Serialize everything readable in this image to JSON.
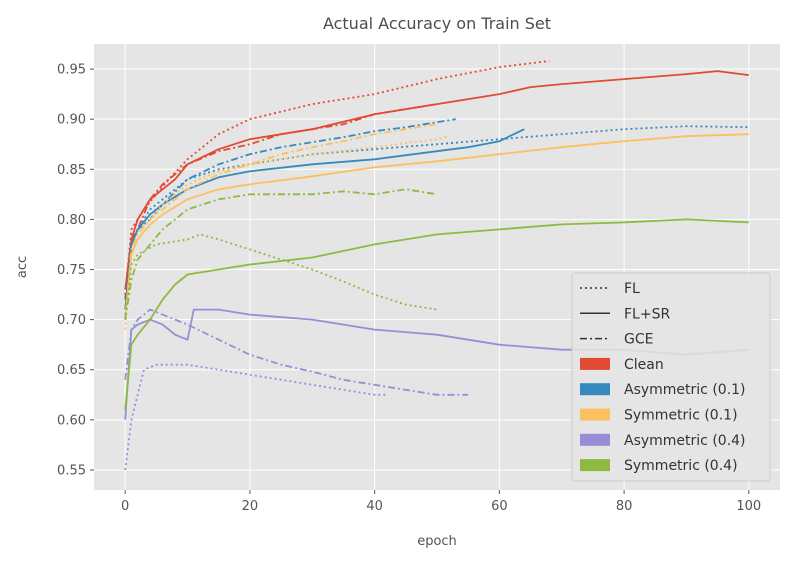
{
  "chart_data": {
    "type": "line",
    "title": "Actual Accuracy on Train Set",
    "xlabel": "epoch",
    "ylabel": "acc",
    "xlim": [
      -5,
      105
    ],
    "ylim": [
      0.53,
      0.975
    ],
    "xticks": [
      0,
      20,
      40,
      60,
      80,
      100
    ],
    "yticks": [
      0.55,
      0.6,
      0.65,
      0.7,
      0.75,
      0.8,
      0.85,
      0.9,
      0.95
    ],
    "grid": true,
    "legend_position": "lower-right",
    "legend": {
      "styles": [
        {
          "label": "FL",
          "dash": "dotted"
        },
        {
          "label": "FL+SR",
          "dash": "solid"
        },
        {
          "label": "GCE",
          "dash": "dashdot"
        }
      ],
      "conditions": [
        {
          "label": "Clean",
          "color": "#e24a33"
        },
        {
          "label": "Asymmetric (0.1)",
          "color": "#348abd"
        },
        {
          "label": "Symmetric (0.1)",
          "color": "#fbc15e"
        },
        {
          "label": "Asymmetric (0.4)",
          "color": "#988ed5"
        },
        {
          "label": "Symmetric (0.4)",
          "color": "#8eba42"
        }
      ]
    },
    "series": [
      {
        "condition": "Clean",
        "style": "FL",
        "points": [
          [
            0,
            0.725
          ],
          [
            1,
            0.79
          ],
          [
            2,
            0.8
          ],
          [
            3,
            0.81
          ],
          [
            5,
            0.825
          ],
          [
            7,
            0.84
          ],
          [
            10,
            0.86
          ],
          [
            15,
            0.885
          ],
          [
            20,
            0.9
          ],
          [
            30,
            0.915
          ],
          [
            40,
            0.925
          ],
          [
            50,
            0.94
          ],
          [
            60,
            0.952
          ],
          [
            68,
            0.958
          ]
        ]
      },
      {
        "condition": "Clean",
        "style": "FL+SR",
        "points": [
          [
            0,
            0.73
          ],
          [
            1,
            0.78
          ],
          [
            2,
            0.8
          ],
          [
            4,
            0.82
          ],
          [
            6,
            0.83
          ],
          [
            8,
            0.84
          ],
          [
            10,
            0.855
          ],
          [
            15,
            0.87
          ],
          [
            20,
            0.88
          ],
          [
            30,
            0.89
          ],
          [
            40,
            0.905
          ],
          [
            50,
            0.915
          ],
          [
            60,
            0.925
          ],
          [
            65,
            0.932
          ],
          [
            70,
            0.935
          ],
          [
            80,
            0.94
          ],
          [
            90,
            0.945
          ],
          [
            95,
            0.948
          ],
          [
            100,
            0.944
          ]
        ]
      },
      {
        "condition": "Clean",
        "style": "GCE",
        "points": [
          [
            0,
            0.72
          ],
          [
            1,
            0.78
          ],
          [
            2,
            0.79
          ],
          [
            4,
            0.82
          ],
          [
            6,
            0.835
          ],
          [
            10,
            0.855
          ],
          [
            15,
            0.868
          ],
          [
            20,
            0.875
          ],
          [
            25,
            0.885
          ],
          [
            30,
            0.89
          ],
          [
            35,
            0.895
          ],
          [
            40,
            0.905
          ],
          [
            45,
            0.91
          ],
          [
            50,
            0.915
          ]
        ]
      },
      {
        "condition": "Asymmetric (0.1)",
        "style": "FL",
        "points": [
          [
            0,
            0.7
          ],
          [
            1,
            0.775
          ],
          [
            2,
            0.79
          ],
          [
            4,
            0.81
          ],
          [
            6,
            0.82
          ],
          [
            10,
            0.84
          ],
          [
            15,
            0.85
          ],
          [
            20,
            0.855
          ],
          [
            30,
            0.865
          ],
          [
            40,
            0.87
          ],
          [
            50,
            0.875
          ],
          [
            60,
            0.88
          ],
          [
            70,
            0.885
          ],
          [
            80,
            0.89
          ],
          [
            90,
            0.893
          ],
          [
            100,
            0.892
          ]
        ]
      },
      {
        "condition": "Asymmetric (0.1)",
        "style": "FL+SR",
        "points": [
          [
            0,
            0.71
          ],
          [
            1,
            0.775
          ],
          [
            2,
            0.79
          ],
          [
            4,
            0.805
          ],
          [
            6,
            0.815
          ],
          [
            10,
            0.83
          ],
          [
            15,
            0.842
          ],
          [
            20,
            0.848
          ],
          [
            30,
            0.855
          ],
          [
            40,
            0.86
          ],
          [
            50,
            0.868
          ],
          [
            55,
            0.872
          ],
          [
            60,
            0.878
          ],
          [
            64,
            0.89
          ]
        ]
      },
      {
        "condition": "Asymmetric (0.1)",
        "style": "GCE",
        "points": [
          [
            0,
            0.7
          ],
          [
            1,
            0.77
          ],
          [
            2,
            0.79
          ],
          [
            4,
            0.8
          ],
          [
            6,
            0.815
          ],
          [
            10,
            0.84
          ],
          [
            15,
            0.855
          ],
          [
            20,
            0.865
          ],
          [
            25,
            0.872
          ],
          [
            30,
            0.877
          ],
          [
            35,
            0.882
          ],
          [
            40,
            0.888
          ],
          [
            45,
            0.892
          ],
          [
            48,
            0.895
          ],
          [
            53,
            0.9
          ]
        ]
      },
      {
        "condition": "Symmetric (0.1)",
        "style": "FL",
        "points": [
          [
            0,
            0.69
          ],
          [
            1,
            0.77
          ],
          [
            2,
            0.785
          ],
          [
            4,
            0.8
          ],
          [
            6,
            0.815
          ],
          [
            10,
            0.835
          ],
          [
            15,
            0.848
          ],
          [
            20,
            0.855
          ],
          [
            30,
            0.865
          ],
          [
            40,
            0.872
          ],
          [
            50,
            0.88
          ],
          [
            52,
            0.883
          ]
        ]
      },
      {
        "condition": "Symmetric (0.1)",
        "style": "FL+SR",
        "points": [
          [
            0,
            0.7
          ],
          [
            1,
            0.765
          ],
          [
            2,
            0.78
          ],
          [
            4,
            0.795
          ],
          [
            6,
            0.805
          ],
          [
            10,
            0.82
          ],
          [
            15,
            0.83
          ],
          [
            20,
            0.835
          ],
          [
            30,
            0.843
          ],
          [
            40,
            0.852
          ],
          [
            50,
            0.858
          ],
          [
            60,
            0.865
          ],
          [
            70,
            0.872
          ],
          [
            80,
            0.878
          ],
          [
            90,
            0.883
          ],
          [
            100,
            0.885
          ]
        ]
      },
      {
        "condition": "Symmetric (0.1)",
        "style": "GCE",
        "points": [
          [
            0,
            0.7
          ],
          [
            1,
            0.77
          ],
          [
            2,
            0.785
          ],
          [
            4,
            0.8
          ],
          [
            6,
            0.81
          ],
          [
            10,
            0.83
          ],
          [
            15,
            0.845
          ],
          [
            20,
            0.855
          ],
          [
            25,
            0.865
          ],
          [
            30,
            0.872
          ],
          [
            35,
            0.878
          ],
          [
            40,
            0.885
          ],
          [
            45,
            0.89
          ],
          [
            50,
            0.895
          ]
        ]
      },
      {
        "condition": "Asymmetric (0.4)",
        "style": "FL",
        "points": [
          [
            0,
            0.55
          ],
          [
            1,
            0.6
          ],
          [
            2,
            0.625
          ],
          [
            3,
            0.65
          ],
          [
            5,
            0.655
          ],
          [
            10,
            0.655
          ],
          [
            15,
            0.65
          ],
          [
            20,
            0.645
          ],
          [
            25,
            0.64
          ],
          [
            30,
            0.635
          ],
          [
            35,
            0.63
          ],
          [
            40,
            0.625
          ],
          [
            42,
            0.625
          ]
        ]
      },
      {
        "condition": "Asymmetric (0.4)",
        "style": "FL+SR",
        "points": [
          [
            0,
            0.6
          ],
          [
            1,
            0.69
          ],
          [
            2,
            0.695
          ],
          [
            4,
            0.7
          ],
          [
            6,
            0.695
          ],
          [
            8,
            0.685
          ],
          [
            10,
            0.68
          ],
          [
            11,
            0.71
          ],
          [
            15,
            0.71
          ],
          [
            20,
            0.705
          ],
          [
            30,
            0.7
          ],
          [
            40,
            0.69
          ],
          [
            50,
            0.685
          ],
          [
            60,
            0.675
          ],
          [
            70,
            0.67
          ],
          [
            80,
            0.67
          ],
          [
            90,
            0.665
          ],
          [
            100,
            0.67
          ]
        ]
      },
      {
        "condition": "Asymmetric (0.4)",
        "style": "GCE",
        "points": [
          [
            0,
            0.64
          ],
          [
            1,
            0.69
          ],
          [
            2,
            0.7
          ],
          [
            4,
            0.71
          ],
          [
            6,
            0.705
          ],
          [
            10,
            0.695
          ],
          [
            15,
            0.68
          ],
          [
            20,
            0.665
          ],
          [
            25,
            0.655
          ],
          [
            30,
            0.648
          ],
          [
            35,
            0.64
          ],
          [
            40,
            0.635
          ],
          [
            45,
            0.63
          ],
          [
            50,
            0.625
          ],
          [
            55,
            0.625
          ]
        ]
      },
      {
        "condition": "Symmetric (0.4)",
        "style": "FL",
        "points": [
          [
            0,
            0.7
          ],
          [
            1,
            0.755
          ],
          [
            2,
            0.765
          ],
          [
            5,
            0.775
          ],
          [
            10,
            0.78
          ],
          [
            12,
            0.785
          ],
          [
            15,
            0.78
          ],
          [
            20,
            0.77
          ],
          [
            25,
            0.76
          ],
          [
            30,
            0.75
          ],
          [
            35,
            0.738
          ],
          [
            40,
            0.725
          ],
          [
            45,
            0.715
          ],
          [
            50,
            0.71
          ]
        ]
      },
      {
        "condition": "Symmetric (0.4)",
        "style": "FL+SR",
        "points": [
          [
            0,
            0.61
          ],
          [
            1,
            0.675
          ],
          [
            2,
            0.685
          ],
          [
            4,
            0.7
          ],
          [
            6,
            0.72
          ],
          [
            8,
            0.735
          ],
          [
            10,
            0.745
          ],
          [
            15,
            0.75
          ],
          [
            20,
            0.755
          ],
          [
            30,
            0.762
          ],
          [
            40,
            0.775
          ],
          [
            50,
            0.785
          ],
          [
            60,
            0.79
          ],
          [
            70,
            0.795
          ],
          [
            80,
            0.797
          ],
          [
            90,
            0.8
          ],
          [
            100,
            0.797
          ]
        ]
      },
      {
        "condition": "Symmetric (0.4)",
        "style": "GCE",
        "points": [
          [
            0,
            0.7
          ],
          [
            1,
            0.74
          ],
          [
            2,
            0.76
          ],
          [
            4,
            0.775
          ],
          [
            6,
            0.79
          ],
          [
            8,
            0.8
          ],
          [
            10,
            0.81
          ],
          [
            15,
            0.82
          ],
          [
            20,
            0.825
          ],
          [
            25,
            0.825
          ],
          [
            30,
            0.825
          ],
          [
            35,
            0.828
          ],
          [
            40,
            0.825
          ],
          [
            45,
            0.83
          ],
          [
            50,
            0.825
          ]
        ]
      }
    ]
  }
}
